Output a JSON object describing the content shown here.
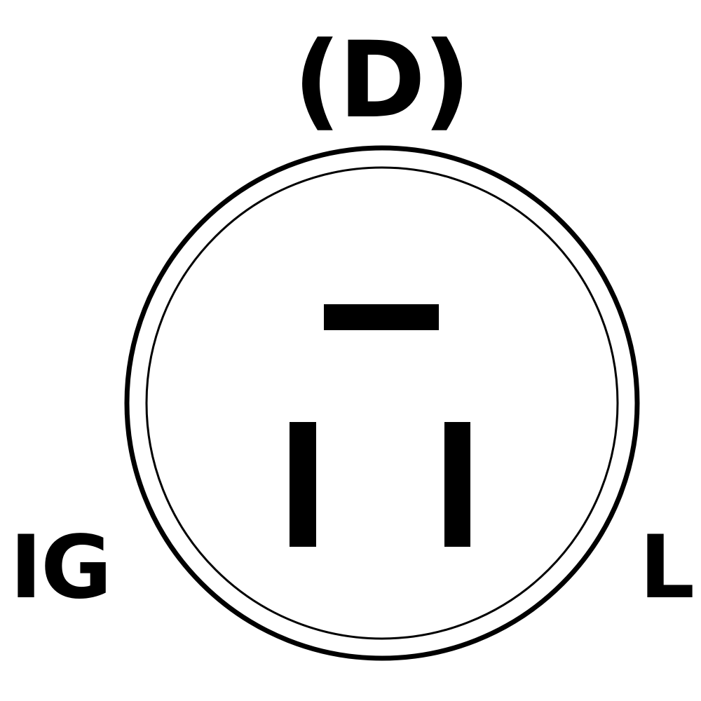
{
  "labels": {
    "top": "(D)",
    "left": "IG",
    "right": "L"
  },
  "colors": {
    "ink": "#000000",
    "background": "#ffffff"
  }
}
